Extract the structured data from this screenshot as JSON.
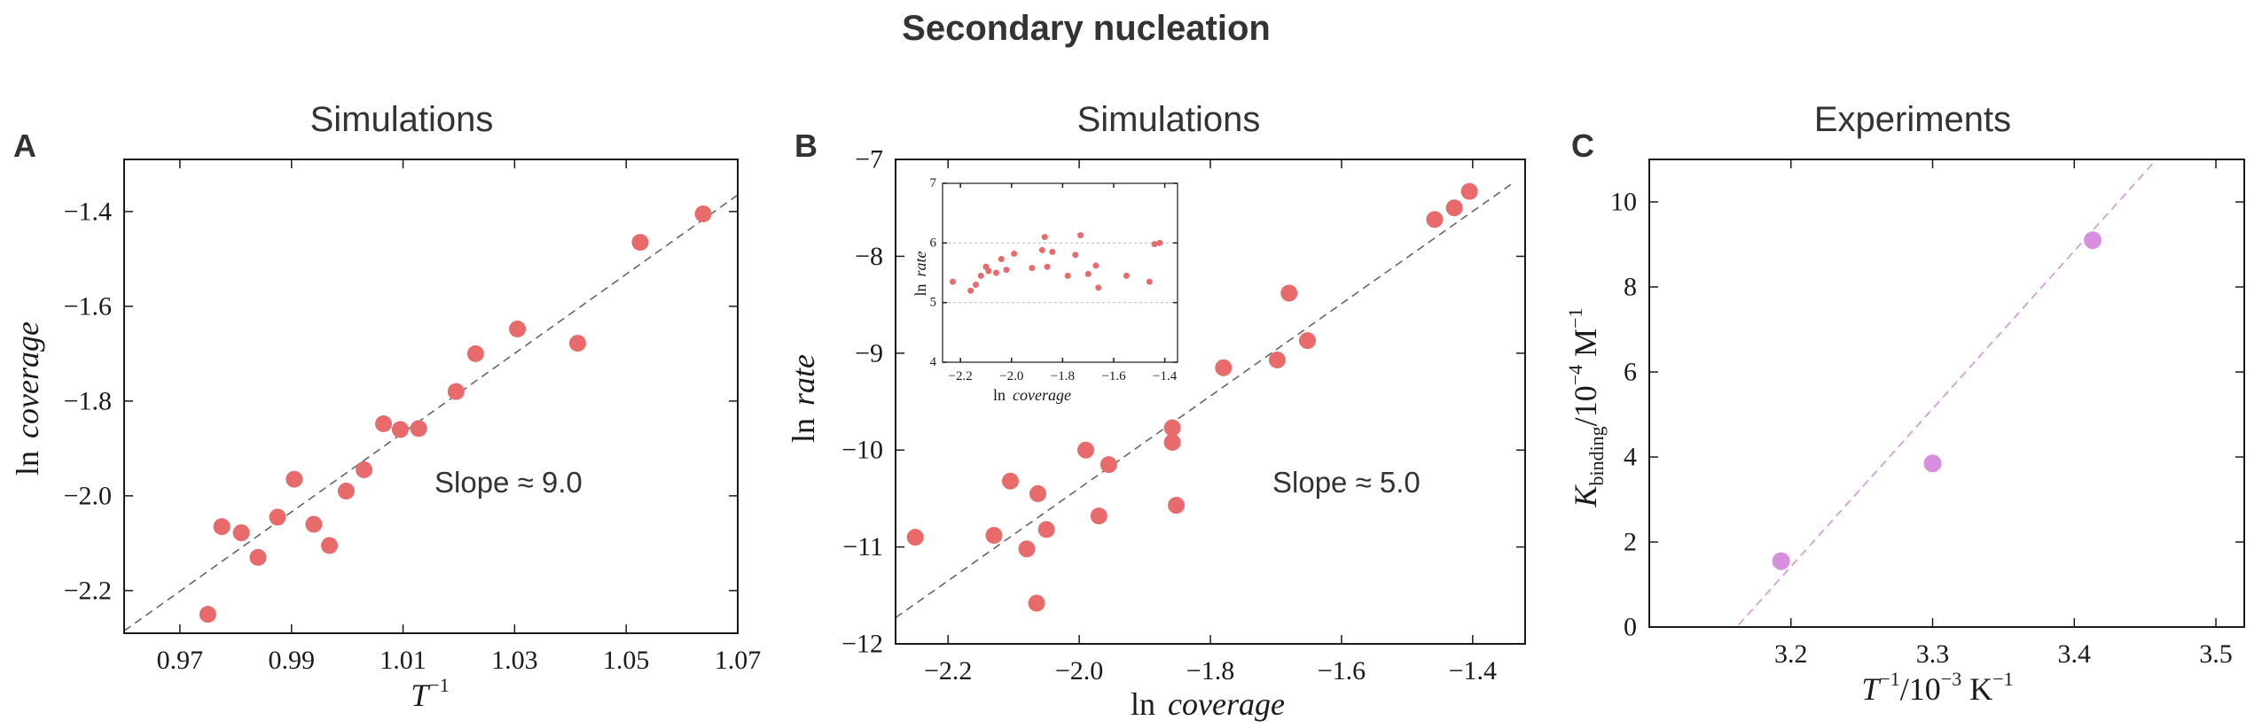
{
  "figure": {
    "title": "Secondary nucleation"
  },
  "chart_data": [
    {
      "id": "A",
      "type": "scatter",
      "panel_label": "A",
      "title": "Simulations",
      "xlabel_main": "T",
      "xlabel_sup": "−1",
      "ylabel_pre": "ln",
      "ylabel_var": "coverage",
      "annotation": "Slope ≈ 9.0",
      "xlim": [
        0.96,
        1.07
      ],
      "ylim": [
        -2.29,
        -1.29
      ],
      "xticks": [
        0.97,
        0.99,
        1.01,
        1.03,
        1.05,
        1.07
      ],
      "xtick_labels": [
        "0.97",
        "0.99",
        "1.01",
        "1.03",
        "1.05",
        "1.07"
      ],
      "yticks": [
        -2.2,
        -2.0,
        -1.8,
        -1.6,
        -1.4
      ],
      "ytick_labels": [
        "−2.2",
        "−2.0",
        "−1.8",
        "−1.6",
        "−1.4"
      ],
      "fit_line": {
        "x": [
          0.96,
          1.07
        ],
        "y": [
          -2.285,
          -1.365
        ]
      },
      "point_color": "#e86a6a",
      "line_color": "#666666",
      "x": [
        0.975,
        0.9775,
        0.981,
        0.984,
        0.9875,
        0.9905,
        0.994,
        0.9968,
        0.9998,
        1.003,
        1.0065,
        1.0095,
        1.0128,
        1.0195,
        1.023,
        1.0305,
        1.0413,
        1.0525,
        1.0638
      ],
      "y": [
        -2.25,
        -2.065,
        -2.078,
        -2.13,
        -2.045,
        -1.965,
        -2.06,
        -2.105,
        -1.99,
        -1.945,
        -1.848,
        -1.86,
        -1.858,
        -1.78,
        -1.7,
        -1.648,
        -1.678,
        -1.465,
        -1.405
      ]
    },
    {
      "id": "B",
      "type": "scatter",
      "panel_label": "B",
      "title": "Simulations",
      "xlabel_pre": "ln",
      "xlabel_var": "coverage",
      "ylabel_pre": "ln",
      "ylabel_var": "rate",
      "annotation": "Slope ≈ 5.0",
      "xlim": [
        -2.28,
        -1.32
      ],
      "ylim": [
        -12,
        -7
      ],
      "xticks": [
        -2.2,
        -2.0,
        -1.8,
        -1.6,
        -1.4
      ],
      "xtick_labels": [
        "−2.2",
        "−2.0",
        "−1.8",
        "−1.6",
        "−1.4"
      ],
      "yticks": [
        -12,
        -11,
        -10,
        -9,
        -8,
        -7
      ],
      "ytick_labels": [
        "−12",
        "−11",
        "−10",
        "−9",
        "−8",
        "−7"
      ],
      "fit_line": {
        "x": [
          -2.28,
          -1.34
        ],
        "y": [
          -11.73,
          -7.25
        ]
      },
      "point_color": "#e86a6a",
      "line_color": "#666666",
      "x": [
        -2.25,
        -2.13,
        -2.105,
        -2.08,
        -2.065,
        -2.063,
        -2.05,
        -1.99,
        -1.97,
        -1.955,
        -1.858,
        -1.858,
        -1.852,
        -1.78,
        -1.698,
        -1.68,
        -1.652,
        -1.458,
        -1.428,
        -1.405
      ],
      "y": [
        -10.9,
        -10.88,
        -10.32,
        -11.02,
        -11.58,
        -10.45,
        -10.82,
        -10.0,
        -10.68,
        -10.15,
        -9.77,
        -9.92,
        -10.57,
        -9.15,
        -9.07,
        -8.38,
        -8.87,
        -7.62,
        -7.5,
        -7.33
      ],
      "inset": {
        "type": "scatter",
        "xlabel_pre": "ln",
        "xlabel_var": "coverage",
        "ylabel_pre": "ln",
        "ylabel_var": "rate",
        "xlim": [
          -2.27,
          -1.35
        ],
        "ylim": [
          4,
          7
        ],
        "xticks": [
          -2.2,
          -2.0,
          -1.8,
          -1.6,
          -1.4
        ],
        "xtick_labels": [
          "−2.2",
          "−2.0",
          "−1.8",
          "−1.6",
          "−1.4"
        ],
        "yticks": [
          4,
          5,
          6,
          7
        ],
        "ytick_labels": [
          "4",
          "5",
          "6",
          "7"
        ],
        "hlines": [
          5,
          6
        ],
        "x": [
          -2.23,
          -2.16,
          -2.14,
          -2.12,
          -2.1,
          -2.09,
          -2.06,
          -2.04,
          -2.02,
          -1.99,
          -1.92,
          -1.88,
          -1.87,
          -1.86,
          -1.84,
          -1.78,
          -1.75,
          -1.73,
          -1.7,
          -1.67,
          -1.66,
          -1.55,
          -1.46,
          -1.44,
          -1.42
        ],
        "y": [
          5.35,
          5.2,
          5.3,
          5.45,
          5.6,
          5.53,
          5.5,
          5.73,
          5.55,
          5.82,
          5.58,
          5.88,
          6.1,
          5.6,
          5.85,
          5.45,
          5.8,
          6.13,
          5.48,
          5.62,
          5.25,
          5.45,
          5.35,
          5.98,
          6.0
        ]
      }
    },
    {
      "id": "C",
      "type": "scatter",
      "panel_label": "C",
      "title": "Experiments",
      "xlabel_main": "T",
      "xlabel_sup": "−1",
      "xlabel_rest": "/10",
      "xlabel_sup2": "−3",
      "xlabel_unit": " K",
      "xlabel_sup3": "−1",
      "ylabel_main": "K",
      "ylabel_sub": "binding",
      "ylabel_rest": "/10",
      "ylabel_sup": "−4",
      "ylabel_unit": " M",
      "ylabel_sup2": "−1",
      "xlim": [
        3.1,
        3.52
      ],
      "ylim": [
        0,
        11
      ],
      "xticks": [
        3.2,
        3.3,
        3.4,
        3.5
      ],
      "xtick_labels": [
        "3.2",
        "3.3",
        "3.4",
        "3.5"
      ],
      "yticks": [
        0,
        2,
        4,
        6,
        8,
        10
      ],
      "ytick_labels": [
        "0",
        "2",
        "4",
        "6",
        "8",
        "10"
      ],
      "fit_line": {
        "x": [
          3.163,
          3.458
        ],
        "y": [
          0.05,
          11.0
        ]
      },
      "point_color": "#d98fe0",
      "line_color": "#d98fe0",
      "x": [
        3.193,
        3.3,
        3.413
      ],
      "y": [
        1.55,
        3.85,
        9.1
      ]
    }
  ]
}
